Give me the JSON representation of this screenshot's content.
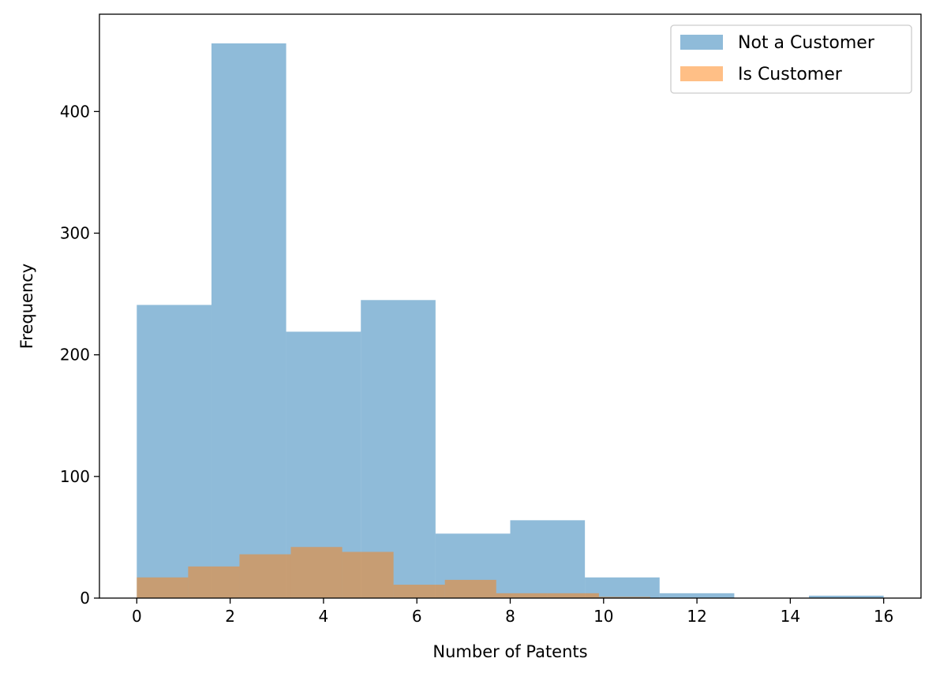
{
  "chart_data": {
    "type": "histogram",
    "xlabel": "Number of Patents",
    "ylabel": "Frequency",
    "xlim": [
      -0.8,
      16.8
    ],
    "ylim": [
      0,
      480
    ],
    "xticks": [
      0,
      2,
      4,
      6,
      8,
      10,
      12,
      14,
      16
    ],
    "yticks": [
      0,
      100,
      200,
      300,
      400
    ],
    "legend": {
      "placement": "upper right"
    },
    "series": [
      {
        "name": "Not a Customer",
        "color": "#1f77b4",
        "opacity": 0.5,
        "bin_edges": [
          0,
          1.6,
          3.2,
          4.8,
          6.4,
          8.0,
          9.6,
          11.2,
          12.8,
          14.4,
          16.0
        ],
        "counts": [
          241,
          456,
          219,
          245,
          53,
          64,
          17,
          4,
          0,
          2
        ]
      },
      {
        "name": "Is Customer",
        "color": "#ff7f0e",
        "opacity": 0.5,
        "bin_edges": [
          0,
          1.1,
          2.2,
          3.3,
          4.4,
          5.5,
          6.6,
          7.7,
          8.8,
          9.9,
          11.0
        ],
        "counts": [
          17,
          26,
          36,
          42,
          38,
          11,
          15,
          4,
          4,
          1
        ]
      }
    ]
  }
}
